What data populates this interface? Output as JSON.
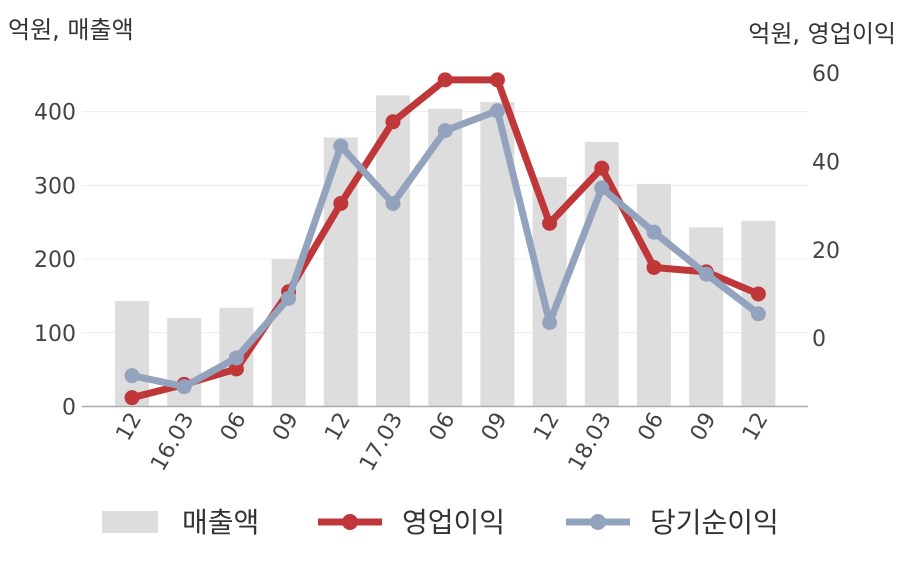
{
  "chart_data": {
    "type": "bar",
    "left_unit": "억원, 매출액",
    "right_unit": "억원, 영업이익",
    "categories": [
      "12",
      "16.03",
      "06",
      "09",
      "12",
      "17.03",
      "06",
      "09",
      "12",
      "18.03",
      "06",
      "09",
      "12"
    ],
    "y_left": {
      "ticks": [
        0,
        100,
        200,
        300,
        400
      ],
      "range": [
        0,
        470
      ]
    },
    "y_right": {
      "ticks": [
        0,
        20,
        40,
        60
      ],
      "range": [
        -15.5,
        63
      ]
    },
    "grid": true,
    "legend_position": "bottom",
    "series": [
      {
        "name": "매출액",
        "kind": "bar",
        "axis": "left",
        "color": "#dddddd",
        "values": [
          143,
          120,
          134,
          200,
          365,
          422,
          404,
          413,
          311,
          359,
          302,
          243,
          252
        ]
      },
      {
        "name": "영업이익",
        "kind": "line",
        "axis": "right",
        "color": "#c0373a",
        "values": [
          -13.5,
          -10.5,
          -7,
          10.5,
          30.5,
          49,
          58.5,
          58.5,
          26,
          38.5,
          16,
          15,
          10
        ]
      },
      {
        "name": "당기순이익",
        "kind": "line",
        "axis": "right",
        "color": "#94a3bd",
        "values": [
          -8.5,
          -11,
          -4.5,
          9,
          43.5,
          30.5,
          47,
          51.5,
          3.5,
          34,
          24,
          14.5,
          5.5
        ]
      }
    ]
  }
}
